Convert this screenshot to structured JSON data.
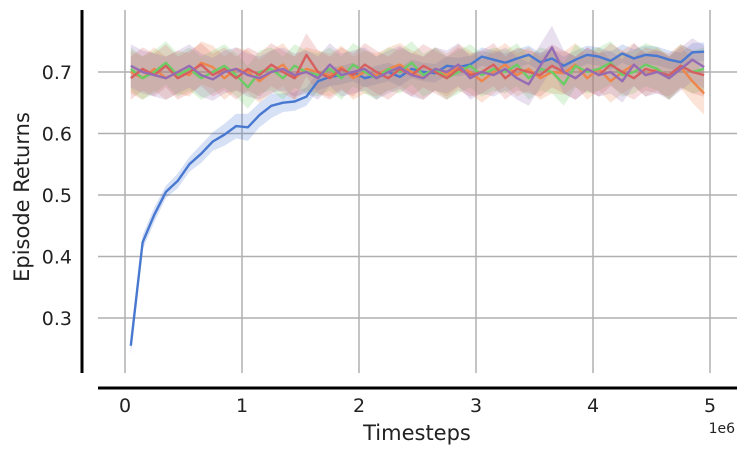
{
  "chart_data": {
    "type": "line",
    "title": "",
    "xlabel": "Timesteps",
    "ylabel": "Episode Returns",
    "x_offset_label": "1e6",
    "xlim": [
      -0.25,
      5.2
    ],
    "ylim": [
      0.21,
      0.81
    ],
    "xticks": [
      0,
      1,
      2,
      3,
      4,
      5
    ],
    "xtick_labels": [
      "0",
      "1",
      "2",
      "3",
      "4",
      "5"
    ],
    "yticks": [
      0.3,
      0.4,
      0.5,
      0.6,
      0.7
    ],
    "ytick_labels": [
      "0.3",
      "0.4",
      "0.5",
      "0.6",
      "0.7"
    ],
    "grid": true,
    "legend": "none",
    "series": [
      {
        "color": "#4878d0",
        "band_color": "#4878d0",
        "x": [
          0.05,
          0.15,
          0.25,
          0.35,
          0.45,
          0.55,
          0.65,
          0.75,
          0.85,
          0.95,
          1.05,
          1.15,
          1.25,
          1.35,
          1.45,
          1.55,
          1.65,
          1.75,
          1.85,
          1.95,
          2.05,
          2.15,
          2.25,
          2.35,
          2.45,
          2.55,
          2.65,
          2.75,
          2.85,
          2.95,
          3.05,
          3.15,
          3.25,
          3.35,
          3.45,
          3.55,
          3.65,
          3.75,
          3.85,
          3.95,
          4.05,
          4.15,
          4.25,
          4.35,
          4.45,
          4.55,
          4.65,
          4.75,
          4.85,
          4.95
        ],
        "y": [
          0.255,
          0.423,
          0.468,
          0.505,
          0.523,
          0.55,
          0.567,
          0.587,
          0.598,
          0.612,
          0.61,
          0.63,
          0.645,
          0.65,
          0.652,
          0.66,
          0.685,
          0.692,
          0.695,
          0.7,
          0.69,
          0.695,
          0.7,
          0.692,
          0.705,
          0.7,
          0.698,
          0.71,
          0.708,
          0.712,
          0.725,
          0.72,
          0.715,
          0.722,
          0.728,
          0.716,
          0.722,
          0.71,
          0.72,
          0.728,
          0.725,
          0.718,
          0.73,
          0.722,
          0.728,
          0.726,
          0.72,
          0.716,
          0.732,
          0.733
        ],
        "spread": [
          0.015,
          0.012,
          0.012,
          0.01,
          0.012,
          0.012,
          0.015,
          0.015,
          0.018,
          0.02,
          0.022,
          0.02,
          0.02,
          0.015,
          0.015,
          0.015,
          0.015,
          0.015,
          0.015,
          0.015,
          0.015,
          0.015,
          0.015,
          0.015,
          0.015,
          0.015,
          0.015,
          0.015,
          0.015,
          0.015,
          0.015,
          0.015,
          0.015,
          0.015,
          0.015,
          0.015,
          0.015,
          0.015,
          0.015,
          0.015,
          0.015,
          0.015,
          0.015,
          0.015,
          0.015,
          0.015,
          0.015,
          0.015,
          0.015,
          0.015
        ]
      },
      {
        "color": "#ee854a",
        "band_color": "#ee854a",
        "x": [
          0.05,
          0.15,
          0.25,
          0.35,
          0.45,
          0.55,
          0.65,
          0.75,
          0.85,
          0.95,
          1.05,
          1.15,
          1.25,
          1.35,
          1.45,
          1.55,
          1.65,
          1.75,
          1.85,
          1.95,
          2.05,
          2.15,
          2.25,
          2.35,
          2.45,
          2.55,
          2.65,
          2.75,
          2.85,
          2.95,
          3.05,
          3.15,
          3.25,
          3.35,
          3.45,
          3.55,
          3.65,
          3.75,
          3.85,
          3.95,
          4.05,
          4.15,
          4.25,
          4.35,
          4.45,
          4.55,
          4.65,
          4.75,
          4.85,
          4.95
        ],
        "y": [
          0.7,
          0.69,
          0.705,
          0.69,
          0.7,
          0.695,
          0.715,
          0.708,
          0.69,
          0.705,
          0.7,
          0.685,
          0.7,
          0.712,
          0.69,
          0.705,
          0.7,
          0.695,
          0.708,
          0.69,
          0.7,
          0.695,
          0.705,
          0.712,
          0.7,
          0.69,
          0.705,
          0.695,
          0.71,
          0.7,
          0.685,
          0.7,
          0.712,
          0.695,
          0.705,
          0.69,
          0.7,
          0.698,
          0.712,
          0.69,
          0.705,
          0.685,
          0.7,
          0.712,
          0.695,
          0.705,
          0.69,
          0.708,
          0.685,
          0.665
        ],
        "spread": [
          0.035,
          0.035,
          0.035,
          0.035,
          0.035,
          0.035,
          0.035,
          0.035,
          0.035,
          0.035,
          0.035,
          0.035,
          0.035,
          0.035,
          0.035,
          0.035,
          0.035,
          0.035,
          0.035,
          0.035,
          0.035,
          0.035,
          0.035,
          0.035,
          0.035,
          0.035,
          0.035,
          0.035,
          0.035,
          0.035,
          0.035,
          0.035,
          0.035,
          0.035,
          0.035,
          0.035,
          0.035,
          0.035,
          0.035,
          0.035,
          0.035,
          0.035,
          0.035,
          0.035,
          0.035,
          0.035,
          0.035,
          0.035,
          0.035,
          0.035
        ]
      },
      {
        "color": "#6acc64",
        "band_color": "#6acc64",
        "x": [
          0.05,
          0.15,
          0.25,
          0.35,
          0.45,
          0.55,
          0.65,
          0.75,
          0.85,
          0.95,
          1.05,
          1.15,
          1.25,
          1.35,
          1.45,
          1.55,
          1.65,
          1.75,
          1.85,
          1.95,
          2.05,
          2.15,
          2.25,
          2.35,
          2.45,
          2.55,
          2.65,
          2.75,
          2.85,
          2.95,
          3.05,
          3.15,
          3.25,
          3.35,
          3.45,
          3.55,
          3.65,
          3.75,
          3.85,
          3.95,
          4.05,
          4.15,
          4.25,
          4.35,
          4.45,
          4.55,
          4.65,
          4.75,
          4.85,
          4.95
        ],
        "y": [
          0.705,
          0.69,
          0.7,
          0.715,
          0.695,
          0.705,
          0.69,
          0.7,
          0.71,
          0.695,
          0.675,
          0.7,
          0.705,
          0.69,
          0.71,
          0.7,
          0.695,
          0.705,
          0.69,
          0.712,
          0.7,
          0.69,
          0.705,
          0.7,
          0.715,
          0.695,
          0.705,
          0.69,
          0.7,
          0.71,
          0.695,
          0.705,
          0.7,
          0.712,
          0.69,
          0.705,
          0.7,
          0.68,
          0.71,
          0.7,
          0.705,
          0.715,
          0.695,
          0.7,
          0.712,
          0.705,
          0.69,
          0.71,
          0.7,
          0.705
        ],
        "spread": [
          0.035,
          0.035,
          0.035,
          0.035,
          0.035,
          0.035,
          0.035,
          0.035,
          0.035,
          0.035,
          0.035,
          0.035,
          0.035,
          0.035,
          0.035,
          0.035,
          0.035,
          0.035,
          0.035,
          0.035,
          0.035,
          0.035,
          0.035,
          0.035,
          0.035,
          0.035,
          0.035,
          0.035,
          0.035,
          0.035,
          0.035,
          0.035,
          0.035,
          0.035,
          0.035,
          0.035,
          0.035,
          0.035,
          0.035,
          0.035,
          0.035,
          0.035,
          0.035,
          0.035,
          0.035,
          0.035,
          0.035,
          0.035,
          0.035,
          0.035
        ]
      },
      {
        "color": "#d65f5f",
        "band_color": "#d65f5f",
        "x": [
          0.05,
          0.15,
          0.25,
          0.35,
          0.45,
          0.55,
          0.65,
          0.75,
          0.85,
          0.95,
          1.05,
          1.15,
          1.25,
          1.35,
          1.45,
          1.55,
          1.65,
          1.75,
          1.85,
          1.95,
          2.05,
          2.15,
          2.25,
          2.35,
          2.45,
          2.55,
          2.65,
          2.75,
          2.85,
          2.95,
          3.05,
          3.15,
          3.25,
          3.35,
          3.45,
          3.55,
          3.65,
          3.75,
          3.85,
          3.95,
          4.05,
          4.15,
          4.25,
          4.35,
          4.45,
          4.55,
          4.65,
          4.75,
          4.85,
          4.95
        ],
        "y": [
          0.69,
          0.705,
          0.695,
          0.71,
          0.69,
          0.7,
          0.712,
          0.695,
          0.705,
          0.69,
          0.705,
          0.695,
          0.712,
          0.7,
          0.69,
          0.728,
          0.7,
          0.69,
          0.705,
          0.695,
          0.712,
          0.7,
          0.69,
          0.705,
          0.695,
          0.71,
          0.7,
          0.69,
          0.705,
          0.695,
          0.7,
          0.712,
          0.69,
          0.705,
          0.7,
          0.695,
          0.71,
          0.7,
          0.69,
          0.705,
          0.695,
          0.712,
          0.7,
          0.69,
          0.705,
          0.7,
          0.695,
          0.71,
          0.7,
          0.695
        ],
        "spread": [
          0.035,
          0.035,
          0.035,
          0.035,
          0.035,
          0.035,
          0.035,
          0.035,
          0.035,
          0.035,
          0.035,
          0.035,
          0.035,
          0.035,
          0.035,
          0.035,
          0.035,
          0.035,
          0.035,
          0.035,
          0.035,
          0.035,
          0.035,
          0.035,
          0.035,
          0.035,
          0.035,
          0.035,
          0.035,
          0.035,
          0.035,
          0.035,
          0.035,
          0.035,
          0.035,
          0.035,
          0.035,
          0.035,
          0.035,
          0.035,
          0.035,
          0.035,
          0.035,
          0.035,
          0.035,
          0.035,
          0.035,
          0.035,
          0.035,
          0.035
        ]
      },
      {
        "color": "#956cb4",
        "band_color": "#956cb4",
        "x": [
          0.05,
          0.15,
          0.25,
          0.35,
          0.45,
          0.55,
          0.65,
          0.75,
          0.85,
          0.95,
          1.05,
          1.15,
          1.25,
          1.35,
          1.45,
          1.55,
          1.65,
          1.75,
          1.85,
          1.95,
          2.05,
          2.15,
          2.25,
          2.35,
          2.45,
          2.55,
          2.65,
          2.75,
          2.85,
          2.95,
          3.05,
          3.15,
          3.25,
          3.35,
          3.45,
          3.55,
          3.65,
          3.75,
          3.85,
          3.95,
          4.05,
          4.15,
          4.25,
          4.35,
          4.45,
          4.55,
          4.65,
          4.75,
          4.85,
          4.95
        ],
        "y": [
          0.71,
          0.7,
          0.695,
          0.69,
          0.7,
          0.71,
          0.695,
          0.688,
          0.7,
          0.705,
          0.695,
          0.69,
          0.7,
          0.705,
          0.695,
          0.7,
          0.69,
          0.712,
          0.695,
          0.7,
          0.705,
          0.69,
          0.7,
          0.708,
          0.695,
          0.69,
          0.705,
          0.7,
          0.712,
          0.69,
          0.7,
          0.695,
          0.705,
          0.69,
          0.68,
          0.71,
          0.74,
          0.7,
          0.69,
          0.705,
          0.695,
          0.7,
          0.685,
          0.712,
          0.695,
          0.7,
          0.69,
          0.705,
          0.72,
          0.708
        ],
        "spread": [
          0.035,
          0.035,
          0.035,
          0.035,
          0.035,
          0.035,
          0.035,
          0.035,
          0.035,
          0.035,
          0.035,
          0.035,
          0.035,
          0.035,
          0.035,
          0.035,
          0.035,
          0.035,
          0.035,
          0.035,
          0.035,
          0.035,
          0.035,
          0.035,
          0.035,
          0.035,
          0.035,
          0.035,
          0.035,
          0.035,
          0.035,
          0.035,
          0.035,
          0.035,
          0.035,
          0.035,
          0.035,
          0.035,
          0.035,
          0.035,
          0.035,
          0.035,
          0.035,
          0.035,
          0.035,
          0.035,
          0.035,
          0.035,
          0.035,
          0.035
        ]
      }
    ]
  }
}
